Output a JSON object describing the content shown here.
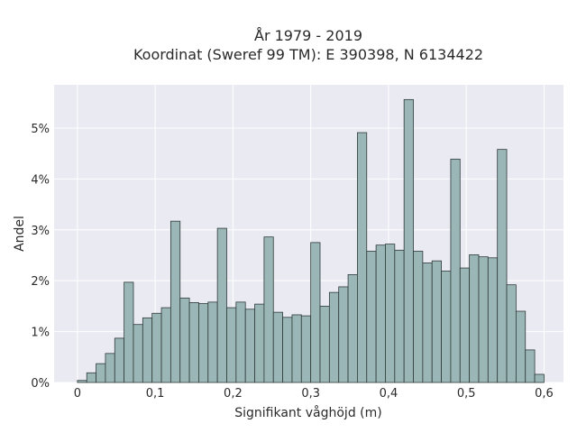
{
  "chart_data": {
    "type": "bar",
    "title_line1": "År 1979 - 2019",
    "title_line2": "Koordinat (Sweref 99 TM): E 390398, N 6134422",
    "xlabel": "Signifikant våghöjd (m)",
    "ylabel": "Andel",
    "x_ticks": [
      {
        "value": 0,
        "label": "0"
      },
      {
        "value": 0.1,
        "label": "0,1"
      },
      {
        "value": 0.2,
        "label": "0,2"
      },
      {
        "value": 0.3,
        "label": "0,3"
      },
      {
        "value": 0.4,
        "label": "0,4"
      },
      {
        "value": 0.5,
        "label": "0,5"
      },
      {
        "value": 0.6,
        "label": "0,6"
      }
    ],
    "y_ticks": [
      {
        "value": 0,
        "label": "0%"
      },
      {
        "value": 1,
        "label": "1%"
      },
      {
        "value": 2,
        "label": "2%"
      },
      {
        "value": 3,
        "label": "3%"
      },
      {
        "value": 4,
        "label": "4%"
      },
      {
        "value": 5,
        "label": "5%"
      }
    ],
    "xlim": [
      -0.03,
      0.625
    ],
    "ylim": [
      0,
      5.85
    ],
    "bin_width": 0.012,
    "x": [
      0.006,
      0.018,
      0.03,
      0.042,
      0.054,
      0.066,
      0.078,
      0.09,
      0.102,
      0.114,
      0.126,
      0.138,
      0.15,
      0.162,
      0.174,
      0.186,
      0.198,
      0.21,
      0.222,
      0.234,
      0.246,
      0.258,
      0.27,
      0.282,
      0.294,
      0.306,
      0.318,
      0.33,
      0.342,
      0.354,
      0.366,
      0.378,
      0.39,
      0.402,
      0.414,
      0.426,
      0.438,
      0.45,
      0.462,
      0.474,
      0.486,
      0.498,
      0.51,
      0.522,
      0.534,
      0.546,
      0.558,
      0.57,
      0.582,
      0.594
    ],
    "values": [
      0.04,
      0.19,
      0.37,
      0.57,
      0.87,
      1.97,
      1.14,
      1.27,
      1.36,
      1.47,
      3.17,
      1.66,
      1.57,
      1.55,
      1.58,
      3.03,
      1.47,
      1.58,
      1.44,
      1.54,
      2.86,
      1.38,
      1.28,
      1.33,
      1.31,
      2.75,
      1.5,
      1.77,
      1.88,
      2.12,
      4.91,
      2.58,
      2.7,
      2.72,
      2.6,
      5.56,
      2.58,
      2.35,
      2.39,
      2.19,
      4.39,
      2.25,
      2.51,
      2.47,
      2.45,
      4.58,
      1.92,
      1.4,
      0.64,
      0.16
    ],
    "colors": {
      "bar_fill": "#9bb6b6",
      "bar_edge": "#2f3b3b",
      "plot_bg": "#eaeaf2",
      "grid": "#ffffff"
    },
    "grid": true
  }
}
